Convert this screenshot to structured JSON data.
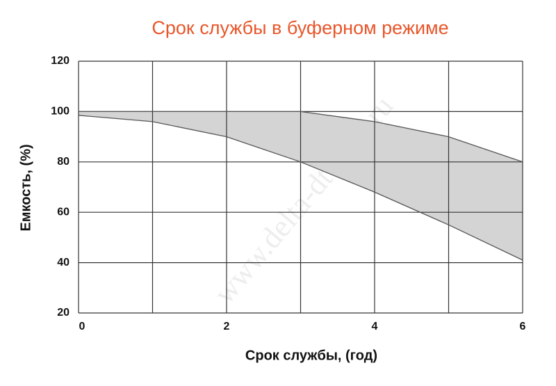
{
  "chart_data": {
    "type": "range-area",
    "title": "Срок службы в буферном режиме",
    "x_label": "Срок службы, (год)",
    "y_label": "Емкость, (%)",
    "watermark": "www.delta-dt1207.ru",
    "x": [
      0,
      1,
      2,
      3,
      4,
      5,
      6
    ],
    "upper": [
      100,
      100,
      100,
      100,
      96,
      90,
      80
    ],
    "lower": [
      98.5,
      96,
      90,
      80,
      68,
      55,
      41
    ],
    "xlim": [
      0,
      6
    ],
    "xticks": [
      0,
      2,
      4,
      6
    ],
    "xgrid": [
      0,
      1,
      2,
      3,
      4,
      5,
      6
    ],
    "ylim": [
      20,
      120
    ],
    "yticks": [
      20,
      40,
      60,
      80,
      100,
      120
    ],
    "grid": true,
    "title_color": "#e8562a",
    "fill_color": "#d4d4d4",
    "line_color": "#555555"
  }
}
